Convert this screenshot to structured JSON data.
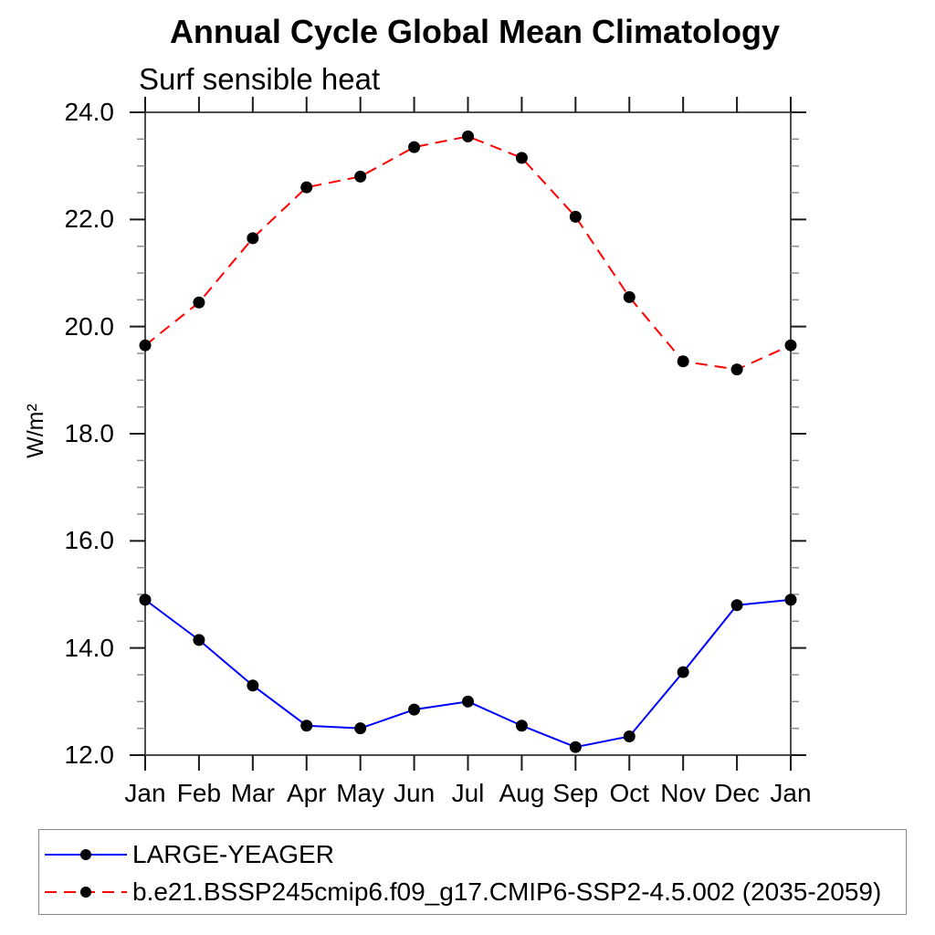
{
  "chart_data": {
    "type": "line",
    "title": "Annual Cycle Global Mean Climatology",
    "subtitle": "Surf sensible heat",
    "ylabel": "W/m²",
    "xlabel": "",
    "categories": [
      "Jan",
      "Feb",
      "Mar",
      "Apr",
      "May",
      "Jun",
      "Jul",
      "Aug",
      "Sep",
      "Oct",
      "Nov",
      "Dec",
      "Jan"
    ],
    "ylim": [
      12.0,
      24.0
    ],
    "ytick_major_step": 2.0,
    "ytick_minor_step": 0.5,
    "ytick_labels": [
      "12.0",
      "14.0",
      "16.0",
      "18.0",
      "20.0",
      "22.0",
      "24.0"
    ],
    "grid": false,
    "legend_position": "bottom-left-box",
    "series": [
      {
        "name": "LARGE-YEAGER",
        "line_color": "#0000ff",
        "line_style": "solid",
        "marker": "filled-circle",
        "marker_color": "#000000",
        "values": [
          14.9,
          14.15,
          13.3,
          12.55,
          12.5,
          12.85,
          13.0,
          12.55,
          12.15,
          12.35,
          13.55,
          14.8,
          14.9
        ]
      },
      {
        "name": "b.e21.BSSP245cmip6.f09_g17.CMIP6-SSP2-4.5.002 (2035-2059)",
        "line_color": "#ff0000",
        "line_style": "dashed",
        "marker": "filled-circle",
        "marker_color": "#000000",
        "values": [
          19.65,
          20.45,
          21.65,
          22.6,
          22.8,
          23.35,
          23.55,
          23.15,
          22.05,
          20.55,
          19.35,
          19.2,
          19.65
        ]
      }
    ]
  }
}
